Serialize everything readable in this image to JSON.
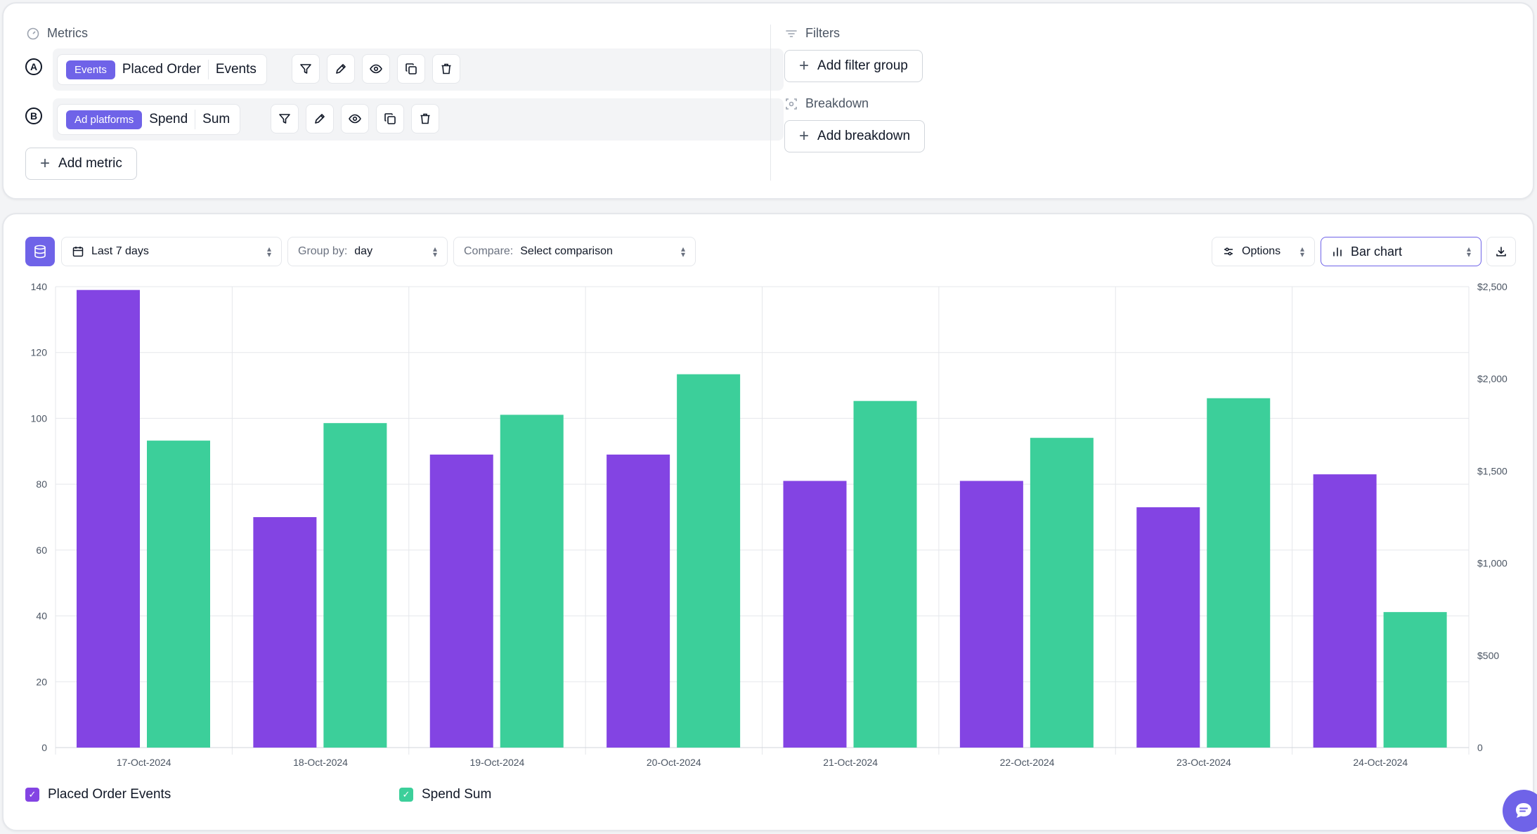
{
  "metrics_panel": {
    "title": "Metrics",
    "rows": [
      {
        "letter": "A",
        "tag": "Events",
        "name": "Placed Order",
        "aggregation": "Events"
      },
      {
        "letter": "B",
        "tag": "Ad platforms",
        "name": "Spend",
        "aggregation": "Sum"
      }
    ],
    "add_metric_label": "Add metric"
  },
  "filters_panel": {
    "title": "Filters",
    "add_filter_group_label": "Add filter group"
  },
  "breakdown_panel": {
    "title": "Breakdown",
    "add_breakdown_label": "Add breakdown"
  },
  "toolbar": {
    "date_range": "Last 7 days",
    "group_by_label": "Group by:",
    "group_by_value": "day",
    "compare_label": "Compare:",
    "compare_value": "Select comparison",
    "options_label": "Options",
    "chart_type_label": "Bar chart"
  },
  "colors": {
    "accent": "#6f63e8",
    "series_purple": "#8344e3",
    "series_green": "#3ccf9a"
  },
  "chart_data": {
    "type": "bar",
    "categories": [
      "17-Oct-2024",
      "18-Oct-2024",
      "19-Oct-2024",
      "20-Oct-2024",
      "21-Oct-2024",
      "22-Oct-2024",
      "23-Oct-2024",
      "24-Oct-2024"
    ],
    "series": [
      {
        "name": "Placed Order Events",
        "axis": "left",
        "color": "#8344e3",
        "values": [
          139,
          70,
          89,
          89,
          81,
          81,
          73,
          83
        ]
      },
      {
        "name": "Spend Sum",
        "axis": "right",
        "color": "#3ccf9a",
        "values": [
          1665,
          1760,
          1805,
          2025,
          1880,
          1680,
          1895,
          735
        ]
      }
    ],
    "left_axis": {
      "ylim": [
        0,
        140
      ],
      "ticks": [
        "0",
        "20",
        "40",
        "60",
        "80",
        "100",
        "120",
        "140"
      ]
    },
    "right_axis": {
      "ylim": [
        0,
        2500
      ],
      "ticks": [
        "0",
        "$500",
        "$1,000",
        "$1,500",
        "$2,000",
        "$2,500"
      ]
    },
    "grid": true,
    "legend_position": "bottom-left"
  }
}
